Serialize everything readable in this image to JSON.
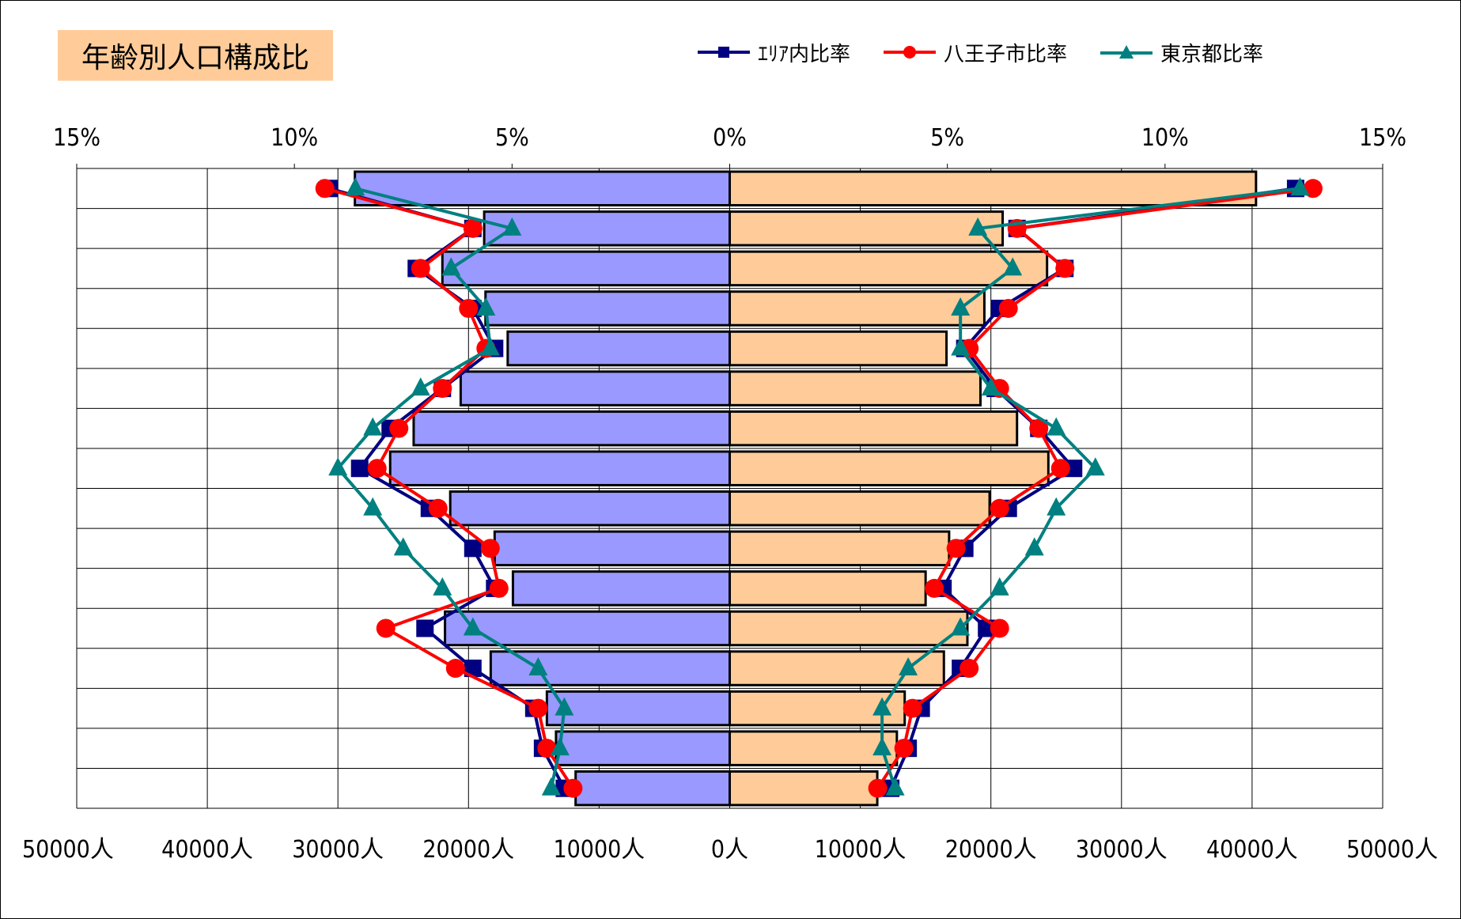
{
  "title": "年齢別人口構成比",
  "legend": [
    {
      "name": "ｴﾘｱ内比率",
      "color": "#000080",
      "marker": "square"
    },
    {
      "name": "八王子市比率",
      "color": "#ff0000",
      "marker": "circle"
    },
    {
      "name": "東京都比率",
      "color": "#008080",
      "marker": "triangle"
    }
  ],
  "chart_data": {
    "type": "bar",
    "orientation": "horizontal-pyramid",
    "rows": 16,
    "top_axis": {
      "range": [
        -15,
        15
      ],
      "ticks": [
        -15,
        -10,
        -5,
        0,
        5,
        10,
        15
      ],
      "tick_labels": [
        "15%",
        "10%",
        "5%",
        "0%",
        "5%",
        "10%",
        "15%"
      ]
    },
    "bottom_axis": {
      "range": [
        -50000,
        50000
      ],
      "ticks": [
        -50000,
        -40000,
        -30000,
        -20000,
        -10000,
        0,
        10000,
        20000,
        30000,
        40000,
        50000
      ],
      "tick_labels": [
        "50000人",
        "40000人",
        "30000人",
        "20000人",
        "10000人",
        "0人",
        "10000人",
        "20000人",
        "30000人",
        "40000人",
        "50000人"
      ]
    },
    "bars": {
      "left_color": "#9999ff",
      "right_color": "#ffcc99",
      "left_values": [
        28700,
        18800,
        22000,
        18700,
        17000,
        20600,
        24200,
        26000,
        21400,
        18000,
        16600,
        21800,
        18300,
        14000,
        13300,
        11800
      ],
      "right_values": [
        40300,
        20900,
        24300,
        19500,
        16600,
        19200,
        22000,
        24400,
        19900,
        16800,
        15000,
        18200,
        16400,
        13400,
        12800,
        11300
      ]
    },
    "series": [
      {
        "name": "ｴﾘｱ内比率",
        "color": "#000080",
        "marker": "square",
        "left": [
          9.2,
          5.9,
          7.2,
          5.9,
          5.4,
          6.6,
          7.8,
          8.5,
          6.9,
          5.9,
          5.4,
          7.0,
          5.9,
          4.5,
          4.3,
          3.8
        ],
        "right": [
          13.0,
          6.6,
          7.7,
          6.2,
          5.4,
          6.1,
          7.1,
          7.9,
          6.4,
          5.4,
          4.9,
          5.9,
          5.3,
          4.4,
          4.1,
          3.7
        ]
      },
      {
        "name": "八王子市比率",
        "color": "#ff0000",
        "marker": "circle",
        "left": [
          9.3,
          5.9,
          7.1,
          6.0,
          5.6,
          6.6,
          7.6,
          8.1,
          6.7,
          5.5,
          5.3,
          7.9,
          6.3,
          4.4,
          4.2,
          3.6
        ],
        "right": [
          13.4,
          6.6,
          7.7,
          6.4,
          5.5,
          6.2,
          7.1,
          7.6,
          6.2,
          5.2,
          4.7,
          6.2,
          5.5,
          4.2,
          4.0,
          3.4
        ]
      },
      {
        "name": "東京都比率",
        "color": "#008080",
        "marker": "triangle",
        "left": [
          8.6,
          5.0,
          6.4,
          5.6,
          5.5,
          7.1,
          8.2,
          9.0,
          8.2,
          7.5,
          6.6,
          5.9,
          4.4,
          3.8,
          3.9,
          4.1
        ],
        "right": [
          13.1,
          5.7,
          6.5,
          5.3,
          5.3,
          6.0,
          7.5,
          8.4,
          7.5,
          7.0,
          6.2,
          5.3,
          4.1,
          3.5,
          3.5,
          3.8
        ]
      }
    ]
  }
}
